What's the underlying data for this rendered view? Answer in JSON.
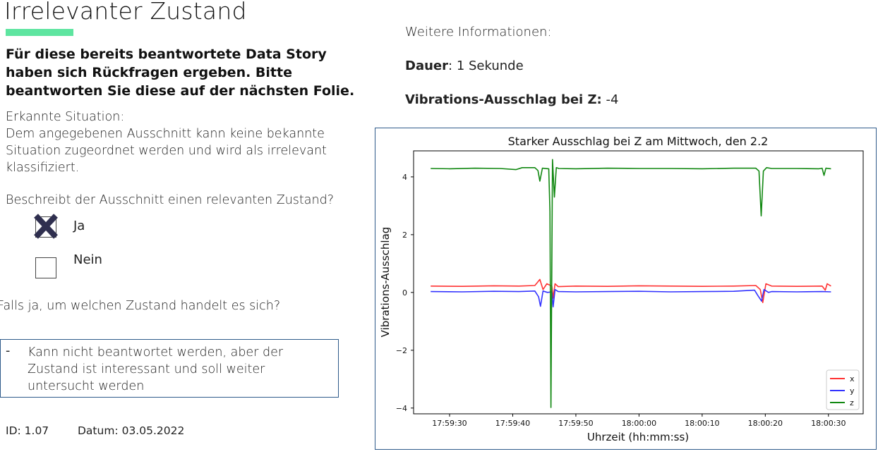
{
  "slide": {
    "title": "Irrelevanter Zustand",
    "accent_color": "#5ee5a0",
    "intro": "Für diese bereits beantwortete Data Story haben sich Rückfragen ergeben. Bitte beantworten Sie diese auf der nächsten Folie.",
    "situation_label": "Erkannte Situation:",
    "situation_text": "Dem angegebenen Ausschnitt kann keine bekannte Situation zugeordnet werden und wird als irrelevant klassifiziert.",
    "question": "Beschreibt der Ausschnitt einen relevanten Zustand?",
    "options": [
      {
        "label": "Ja",
        "checked": true
      },
      {
        "label": "Nein",
        "checked": false
      }
    ],
    "followup_question": "Falls ja, um welchen Zustand handelt es sich?",
    "answer_dash": "-",
    "answer": "Kann nicht beantwortet werden, aber der Zustand ist interessant und soll weiter untersucht werden",
    "id": "ID: 1.07",
    "date": "Datum: 03.05.2022"
  },
  "info": {
    "heading": "Weitere Informationen:",
    "duration_label": "Dauer",
    "duration_sep": ":",
    "duration_value": "1 Sekunde",
    "vibration_label": "Vibrations-Ausschlag bei Z:",
    "vibration_value": "-4"
  },
  "chart_data": {
    "type": "line",
    "title": "Starker Ausschlag bei Z am Mittwoch, den 2.2",
    "xlabel": "Uhrzeit (hh:mm:ss)",
    "ylabel": "Vibrations-Ausschlag",
    "x_ticks": [
      "17:59:30",
      "17:59:40",
      "17:59:50",
      "18:00:00",
      "18:00:10",
      "18:00:20",
      "18:00:30"
    ],
    "x_tick_seconds": [
      30,
      40,
      50,
      60,
      70,
      80,
      90
    ],
    "xlim": [
      24.3,
      95.5
    ],
    "y_ticks": [
      4,
      2,
      0,
      -2,
      -4
    ],
    "ylim": [
      -4.2,
      4.9
    ],
    "legend_position": "bottom-right",
    "series": [
      {
        "name": "x",
        "color": "#ff3333",
        "points": [
          [
            27,
            0.22
          ],
          [
            32,
            0.21
          ],
          [
            37,
            0.23
          ],
          [
            41,
            0.22
          ],
          [
            43.5,
            0.24
          ],
          [
            44.3,
            0.45
          ],
          [
            44.8,
            0.1
          ],
          [
            45.4,
            0.3
          ],
          [
            46.2,
            0.22
          ],
          [
            46.4,
            -0.2
          ],
          [
            46.7,
            0.3
          ],
          [
            47.2,
            0.2
          ],
          [
            50,
            0.22
          ],
          [
            55,
            0.21
          ],
          [
            60,
            0.23
          ],
          [
            65,
            0.22
          ],
          [
            70,
            0.21
          ],
          [
            75,
            0.22
          ],
          [
            78.5,
            0.24
          ],
          [
            79.2,
            0.1
          ],
          [
            79.6,
            -0.35
          ],
          [
            80.1,
            0.3
          ],
          [
            81,
            0.22
          ],
          [
            85,
            0.21
          ],
          [
            89,
            0.22
          ],
          [
            89.5,
            0.08
          ],
          [
            89.8,
            0.3
          ],
          [
            90.4,
            0.22
          ]
        ]
      },
      {
        "name": "y",
        "color": "#3333ff",
        "points": [
          [
            27,
            0.03
          ],
          [
            32,
            0.02
          ],
          [
            37,
            0.04
          ],
          [
            41,
            0.03
          ],
          [
            43.5,
            0.05
          ],
          [
            44.1,
            -0.15
          ],
          [
            44.4,
            -0.48
          ],
          [
            44.8,
            0.05
          ],
          [
            45.5,
            0.0
          ],
          [
            46.2,
            0.02
          ],
          [
            46.4,
            -0.5
          ],
          [
            46.7,
            0.1
          ],
          [
            47.2,
            0.03
          ],
          [
            50,
            0.02
          ],
          [
            55,
            0.03
          ],
          [
            60,
            0.04
          ],
          [
            65,
            0.02
          ],
          [
            70,
            0.03
          ],
          [
            75,
            0.04
          ],
          [
            78.3,
            0.08
          ],
          [
            78.8,
            -0.1
          ],
          [
            79.4,
            -0.3
          ],
          [
            79.8,
            0.1
          ],
          [
            80.5,
            0.0
          ],
          [
            81,
            0.03
          ],
          [
            85,
            0.02
          ],
          [
            89,
            0.03
          ],
          [
            90.4,
            0.02
          ]
        ]
      },
      {
        "name": "z",
        "color": "#118811",
        "points": [
          [
            27,
            4.29
          ],
          [
            30,
            4.28
          ],
          [
            34,
            4.3
          ],
          [
            38,
            4.29
          ],
          [
            40.5,
            4.25
          ],
          [
            41.5,
            4.32
          ],
          [
            43.5,
            4.32
          ],
          [
            44.0,
            4.22
          ],
          [
            44.3,
            3.85
          ],
          [
            44.7,
            4.3
          ],
          [
            45.7,
            4.28
          ],
          [
            45.9,
            2.8
          ],
          [
            46.05,
            -3.98
          ],
          [
            46.3,
            4.6
          ],
          [
            46.6,
            3.3
          ],
          [
            46.9,
            4.32
          ],
          [
            47.3,
            4.29
          ],
          [
            50,
            4.28
          ],
          [
            55,
            4.3
          ],
          [
            60,
            4.29
          ],
          [
            65,
            4.29
          ],
          [
            70,
            4.28
          ],
          [
            75,
            4.3
          ],
          [
            78.5,
            4.3
          ],
          [
            79.0,
            4.2
          ],
          [
            79.35,
            2.65
          ],
          [
            79.7,
            4.2
          ],
          [
            80.2,
            4.32
          ],
          [
            81,
            4.29
          ],
          [
            85,
            4.29
          ],
          [
            88.5,
            4.28
          ],
          [
            89,
            4.3
          ],
          [
            89.3,
            4.05
          ],
          [
            89.6,
            4.3
          ],
          [
            90.4,
            4.28
          ]
        ]
      }
    ]
  }
}
